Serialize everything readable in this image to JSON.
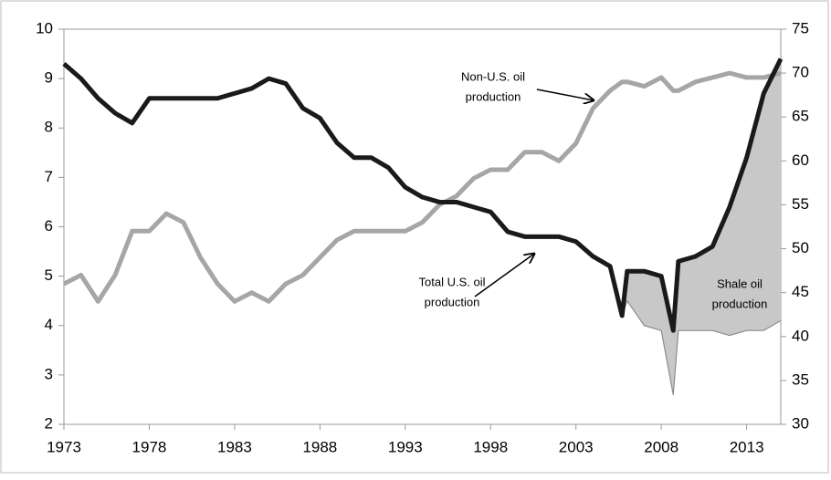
{
  "chart_data": {
    "type": "line",
    "x": [
      1973,
      1974,
      1975,
      1976,
      1977,
      1978,
      1979,
      1980,
      1981,
      1982,
      1983,
      1984,
      1985,
      1986,
      1987,
      1988,
      1989,
      1990,
      1991,
      1992,
      1993,
      1994,
      1995,
      1996,
      1997,
      1998,
      1999,
      2000,
      2001,
      2002,
      2003,
      2004,
      2005,
      2005.7,
      2006,
      2007,
      2008,
      2008.7,
      2009,
      2010,
      2011,
      2012,
      2013,
      2014,
      2015
    ],
    "series": [
      {
        "color": "#1a1a1a",
        "values": [
          9.3,
          9.0,
          8.6,
          8.3,
          8.1,
          8.6,
          8.6,
          8.6,
          8.6,
          8.6,
          8.7,
          8.8,
          9.0,
          8.9,
          8.4,
          8.2,
          7.7,
          7.4,
          7.4,
          7.2,
          6.8,
          6.6,
          6.5,
          6.5,
          6.4,
          6.3,
          5.9,
          5.8,
          5.8,
          5.8,
          5.7,
          5.4,
          5.2,
          4.2,
          5.1,
          5.1,
          5.0,
          3.9,
          5.3,
          5.4,
          5.6,
          6.4,
          7.4,
          8.7,
          9.4
        ]
      },
      {
        "color": "#a6a6a6",
        "axis": "y2",
        "values": [
          46,
          47,
          44,
          47,
          52,
          52,
          54,
          53,
          49,
          46,
          44,
          45,
          44,
          46,
          47,
          49,
          51,
          52,
          52,
          52,
          52,
          53,
          55,
          56,
          58,
          59,
          59,
          61,
          61,
          60,
          62,
          66,
          68,
          69,
          69,
          68.5,
          69.5,
          68,
          68,
          69,
          69.5,
          70,
          69.5,
          69.5,
          70
        ]
      },
      {
        "color": "#8c8c8c",
        "fill": "#c8c8c8",
        "values": [
          null,
          null,
          null,
          null,
          null,
          null,
          null,
          null,
          null,
          null,
          null,
          null,
          null,
          null,
          null,
          null,
          null,
          null,
          null,
          null,
          null,
          null,
          null,
          null,
          null,
          null,
          null,
          null,
          null,
          null,
          null,
          null,
          null,
          4.2,
          4.5,
          4.0,
          3.9,
          2.6,
          3.9,
          3.9,
          3.9,
          3.8,
          3.9,
          3.9,
          4.1
        ]
      }
    ],
    "annotations": [
      {
        "lines": [
          "Non-U.S. oil",
          "production"
        ]
      },
      {
        "lines": [
          "Total U.S. oil",
          "production"
        ]
      },
      {
        "lines": [
          "Shale oil",
          "production"
        ]
      }
    ],
    "xlim": [
      1973,
      2015
    ],
    "xticks": [
      1973,
      1978,
      1983,
      1988,
      1993,
      1998,
      2003,
      2008,
      2013
    ],
    "ylim": [
      2,
      10
    ],
    "yticks": [
      2,
      3,
      4,
      5,
      6,
      7,
      8,
      9,
      10
    ],
    "y2lim": [
      30,
      75
    ],
    "y2ticks": [
      30,
      35,
      40,
      45,
      50,
      55,
      60,
      65,
      70,
      75
    ]
  }
}
